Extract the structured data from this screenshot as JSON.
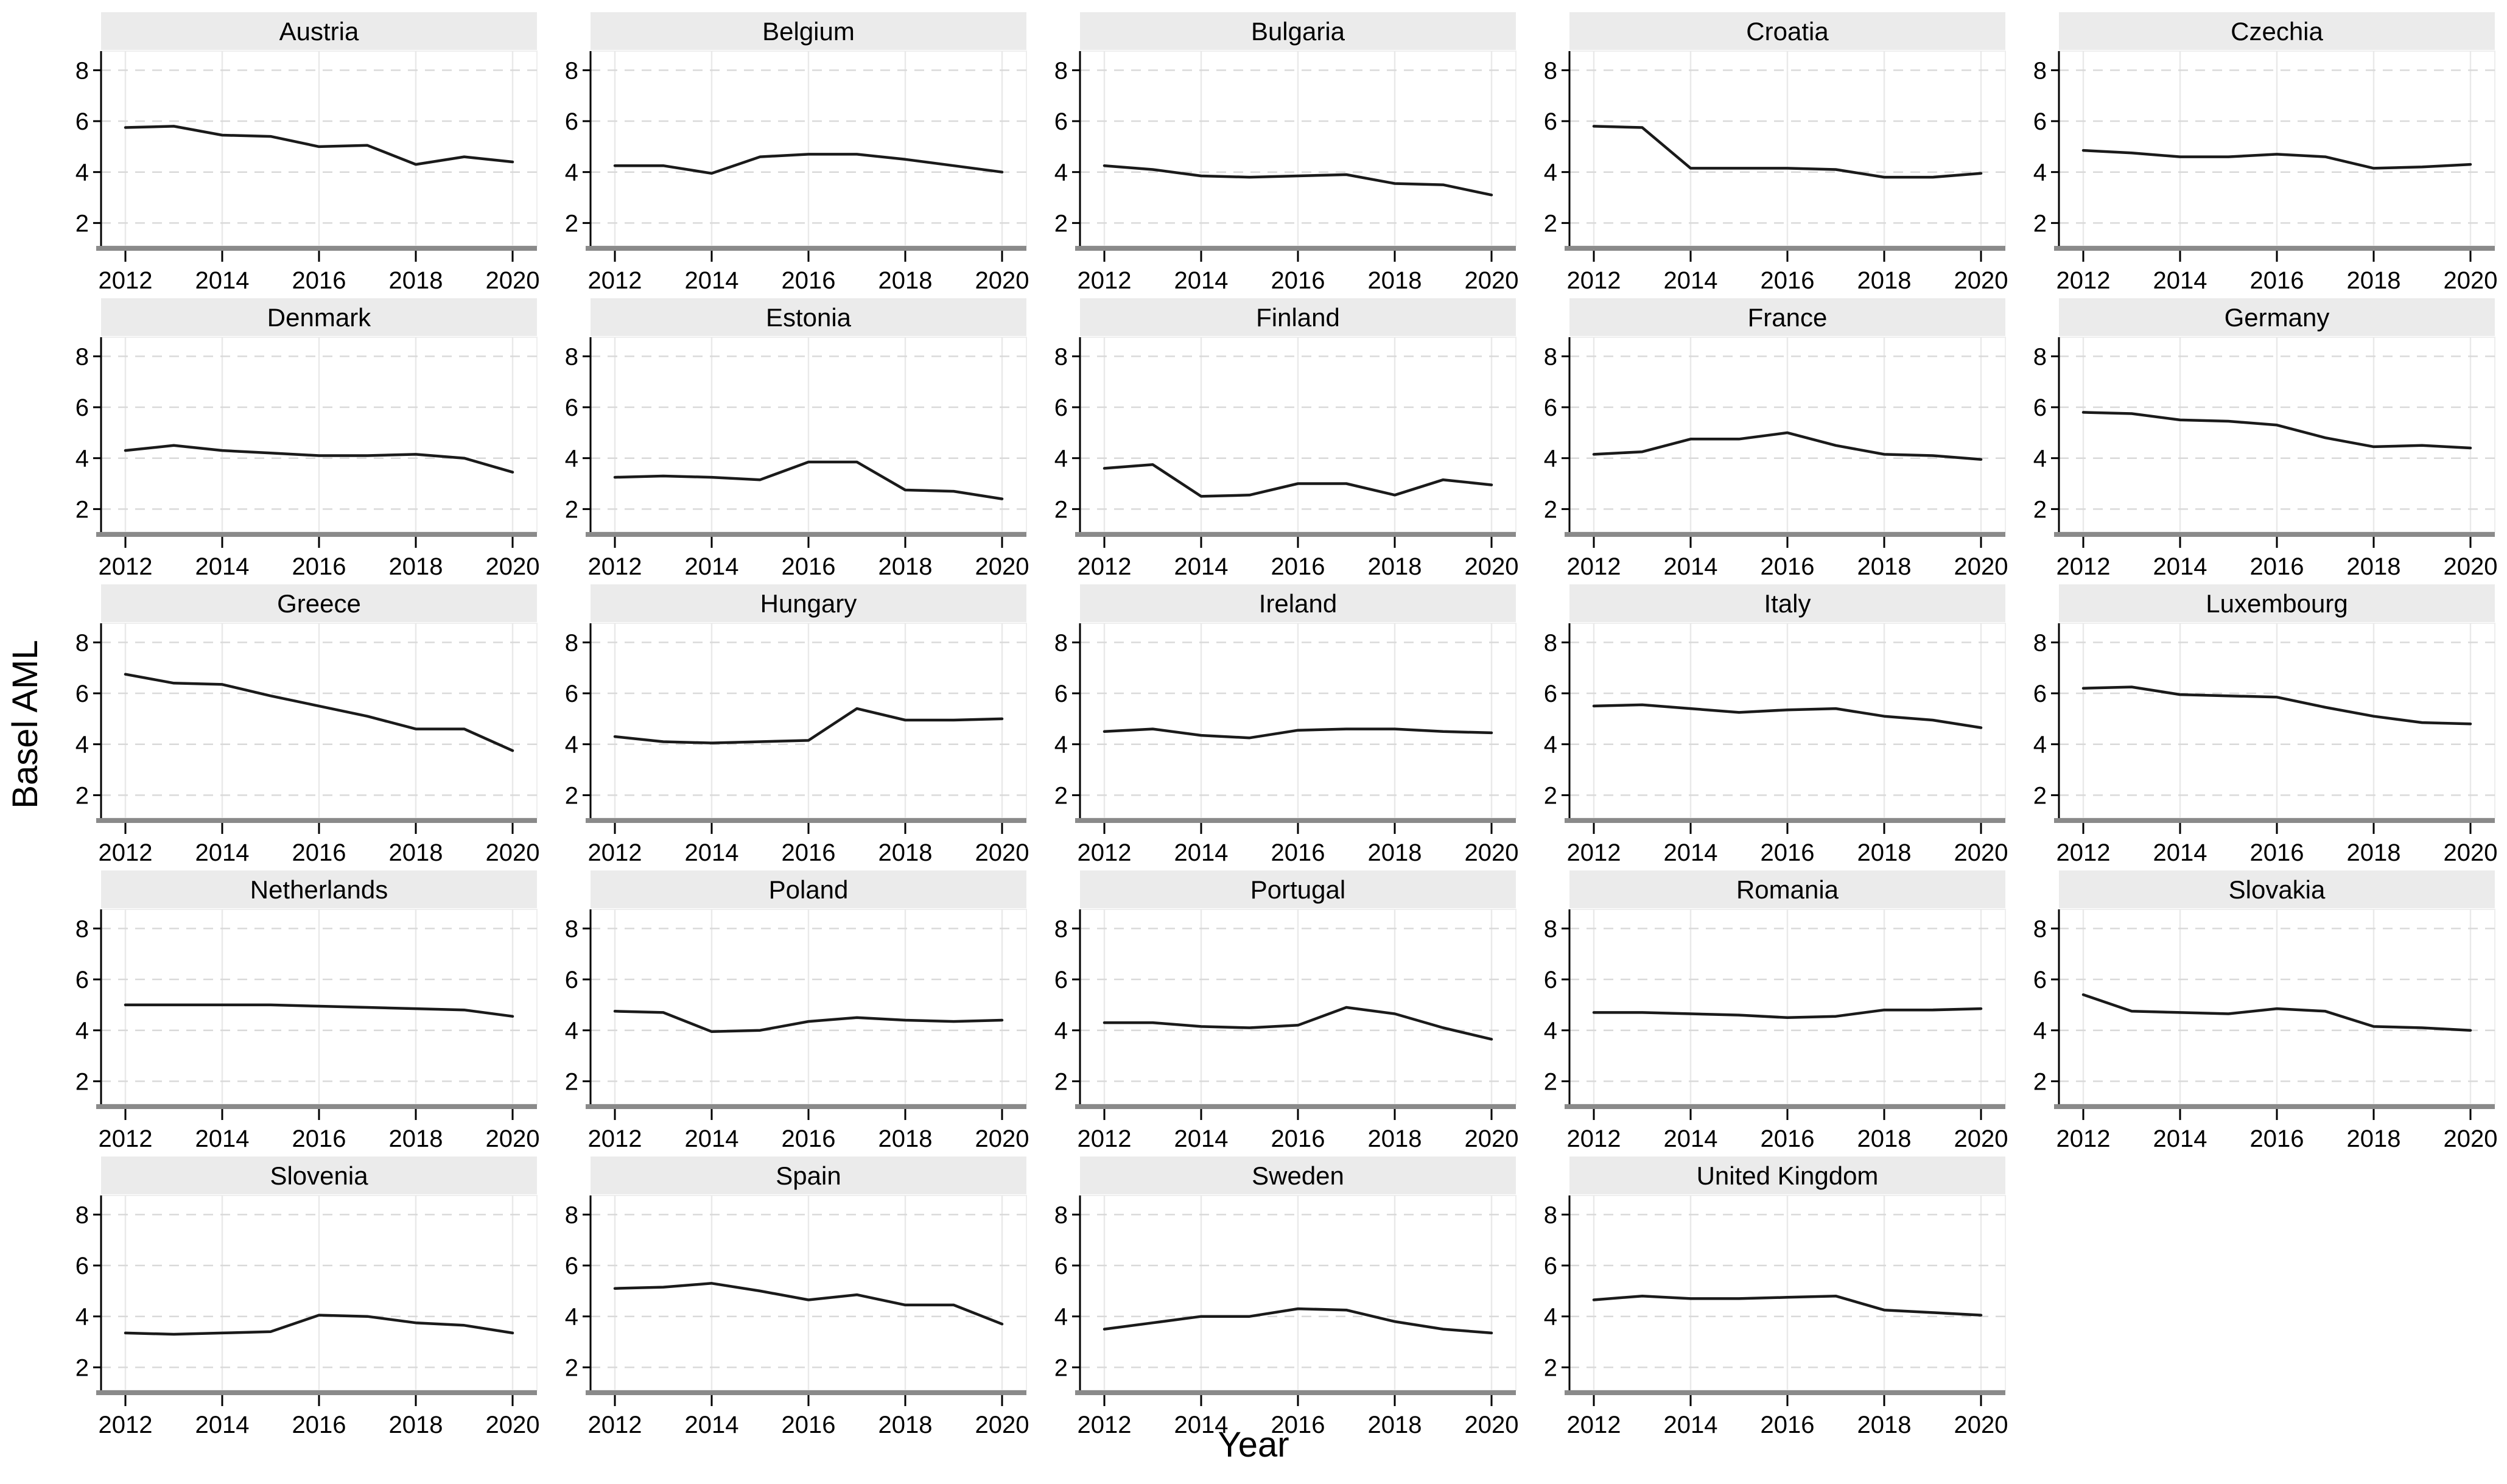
{
  "chart_data": {
    "type": "line",
    "layout": "facet-grid-5col",
    "title": "",
    "xlabel": "Year",
    "ylabel": "Basel AML",
    "x_range": [
      2012,
      2020
    ],
    "x": [
      2012,
      2013,
      2014,
      2015,
      2016,
      2017,
      2018,
      2019,
      2020
    ],
    "x_ticks": [
      2012,
      2014,
      2016,
      2018,
      2020
    ],
    "y_ticks": [
      2,
      4,
      6,
      8
    ],
    "ylim_visual": [
      1.1,
      8.75
    ],
    "grid": true,
    "line_color": "#1a1a1a",
    "strip_fill": "#ebebeb",
    "h_grid_color": "#d9d9d9",
    "v_grid_color": "#e9e9e9",
    "bottom_axis_color": "#8a8a8a",
    "left_axis_color": "#000000",
    "panels": [
      {
        "title": "Austria",
        "values": [
          5.75,
          5.8,
          5.45,
          5.4,
          5.0,
          5.05,
          4.3,
          4.6,
          4.4
        ]
      },
      {
        "title": "Belgium",
        "values": [
          4.25,
          4.25,
          3.95,
          4.6,
          4.7,
          4.7,
          4.5,
          4.25,
          4.0
        ]
      },
      {
        "title": "Bulgaria",
        "values": [
          4.25,
          4.1,
          3.85,
          3.8,
          3.85,
          3.9,
          3.55,
          3.5,
          3.1
        ]
      },
      {
        "title": "Croatia",
        "values": [
          5.8,
          5.75,
          4.15,
          4.15,
          4.15,
          4.1,
          3.8,
          3.8,
          3.95
        ]
      },
      {
        "title": "Czechia",
        "values": [
          4.85,
          4.75,
          4.6,
          4.6,
          4.7,
          4.6,
          4.15,
          4.2,
          4.3
        ]
      },
      {
        "title": "Denmark",
        "values": [
          4.3,
          4.5,
          4.3,
          4.2,
          4.1,
          4.1,
          4.15,
          4.0,
          3.45
        ]
      },
      {
        "title": "Estonia",
        "values": [
          3.25,
          3.3,
          3.25,
          3.15,
          3.85,
          3.85,
          2.75,
          2.7,
          2.4
        ]
      },
      {
        "title": "Finland",
        "values": [
          3.6,
          3.75,
          2.5,
          2.55,
          3.0,
          3.0,
          2.55,
          3.15,
          2.95
        ]
      },
      {
        "title": "France",
        "values": [
          4.15,
          4.25,
          4.75,
          4.75,
          5.0,
          4.5,
          4.15,
          4.1,
          3.95
        ]
      },
      {
        "title": "Germany",
        "values": [
          5.8,
          5.75,
          5.5,
          5.45,
          5.3,
          4.8,
          4.45,
          4.5,
          4.4
        ]
      },
      {
        "title": "Greece",
        "values": [
          6.75,
          6.4,
          6.35,
          5.9,
          5.5,
          5.1,
          4.6,
          4.6,
          3.75
        ]
      },
      {
        "title": "Hungary",
        "values": [
          4.3,
          4.1,
          4.05,
          4.1,
          4.15,
          5.4,
          4.95,
          4.95,
          5.0
        ]
      },
      {
        "title": "Ireland",
        "values": [
          4.5,
          4.6,
          4.35,
          4.25,
          4.55,
          4.6,
          4.6,
          4.5,
          4.45
        ]
      },
      {
        "title": "Italy",
        "values": [
          5.5,
          5.55,
          5.4,
          5.25,
          5.35,
          5.4,
          5.1,
          4.95,
          4.65
        ]
      },
      {
        "title": "Luxembourg",
        "values": [
          6.2,
          6.25,
          5.95,
          5.9,
          5.85,
          5.45,
          5.1,
          4.85,
          4.8
        ]
      },
      {
        "title": "Netherlands",
        "values": [
          5.0,
          5.0,
          5.0,
          5.0,
          4.95,
          4.9,
          4.85,
          4.8,
          4.55
        ]
      },
      {
        "title": "Poland",
        "values": [
          4.75,
          4.7,
          3.95,
          4.0,
          4.35,
          4.5,
          4.4,
          4.35,
          4.4
        ]
      },
      {
        "title": "Portugal",
        "values": [
          4.3,
          4.3,
          4.15,
          4.1,
          4.2,
          4.9,
          4.65,
          4.1,
          3.65
        ]
      },
      {
        "title": "Romania",
        "values": [
          4.7,
          4.7,
          4.65,
          4.6,
          4.5,
          4.55,
          4.8,
          4.8,
          4.85
        ]
      },
      {
        "title": "Slovakia",
        "values": [
          5.4,
          4.75,
          4.7,
          4.65,
          4.85,
          4.75,
          4.15,
          4.1,
          4.0
        ]
      },
      {
        "title": "Slovenia",
        "values": [
          3.35,
          3.3,
          3.35,
          3.4,
          4.05,
          4.0,
          3.75,
          3.65,
          3.35
        ]
      },
      {
        "title": "Spain",
        "values": [
          5.1,
          5.15,
          5.3,
          5.0,
          4.65,
          4.85,
          4.45,
          4.45,
          3.7
        ]
      },
      {
        "title": "Sweden",
        "values": [
          3.5,
          3.75,
          4.0,
          4.0,
          4.3,
          4.25,
          3.8,
          3.5,
          3.35
        ]
      },
      {
        "title": "United Kingdom",
        "values": [
          4.65,
          4.8,
          4.7,
          4.7,
          4.75,
          4.8,
          4.25,
          4.15,
          4.05
        ]
      }
    ]
  }
}
